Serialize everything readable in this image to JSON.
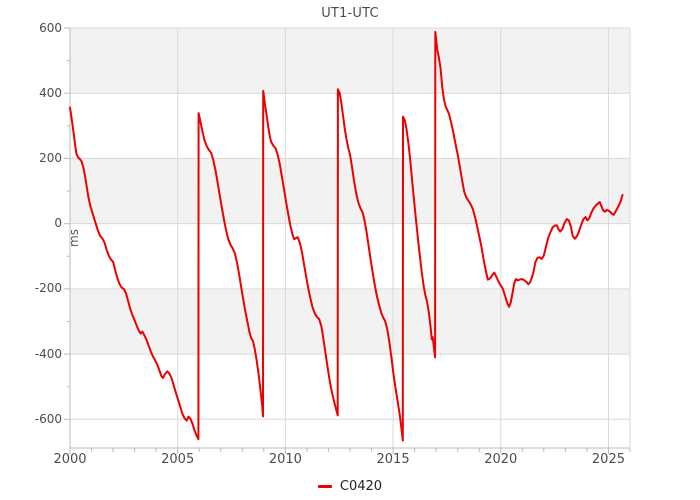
{
  "title": "UT1-UTC",
  "axes": {
    "y_label": "ms",
    "x_ticks": [
      2000,
      2005,
      2010,
      2015,
      2020,
      2025
    ],
    "y_ticks": [
      600,
      400,
      200,
      0,
      -200,
      -400,
      -600
    ],
    "x_minor_step": 1,
    "y_minor_step": 100
  },
  "legend": {
    "items": [
      {
        "label": "C0420",
        "color": "#ee0000"
      }
    ],
    "position": "bottom-center"
  },
  "colors": {
    "background": "#ffffff",
    "band": "#f2f2f2",
    "grid": "#d9d9d9",
    "border": "#d9d9d9",
    "axis": "#bbbbbb",
    "tick_label": "#4d4d4d",
    "title": "#4d4d4d",
    "line": "#ee0000"
  },
  "chart_data": {
    "type": "line",
    "title": "UT1-UTC",
    "xlabel": "",
    "ylabel": "ms",
    "xlim": [
      2000,
      2026
    ],
    "ylim": [
      -688,
      600
    ],
    "grid": true,
    "legend_position": "bottom-center",
    "alternating_bands": [
      [
        600,
        400
      ],
      [
        200,
        0
      ],
      [
        -200,
        -400
      ]
    ],
    "x_tick_labels": [
      "2000",
      "2005",
      "2010",
      "2015",
      "2020",
      "2025"
    ],
    "y_tick_labels": [
      "600",
      "400",
      "200",
      "0",
      "-200",
      "-400",
      "-600"
    ],
    "series": [
      {
        "name": "C0420",
        "color": "#ee0000",
        "x_unit": "decimal_year",
        "y_unit": "ms",
        "points": [
          [
            2000.0,
            356
          ],
          [
            2000.06,
            330
          ],
          [
            2000.12,
            300
          ],
          [
            2000.18,
            272
          ],
          [
            2000.24,
            240
          ],
          [
            2000.3,
            213
          ],
          [
            2000.38,
            203
          ],
          [
            2000.46,
            198
          ],
          [
            2000.54,
            191
          ],
          [
            2000.62,
            172
          ],
          [
            2000.7,
            145
          ],
          [
            2000.78,
            112
          ],
          [
            2000.86,
            80
          ],
          [
            2000.94,
            56
          ],
          [
            2001.02,
            38
          ],
          [
            2001.1,
            20
          ],
          [
            2001.2,
            0
          ],
          [
            2001.3,
            -22
          ],
          [
            2001.4,
            -38
          ],
          [
            2001.5,
            -45
          ],
          [
            2001.6,
            -58
          ],
          [
            2001.7,
            -80
          ],
          [
            2001.8,
            -98
          ],
          [
            2001.9,
            -110
          ],
          [
            2002.0,
            -117
          ],
          [
            2002.1,
            -143
          ],
          [
            2002.2,
            -167
          ],
          [
            2002.3,
            -185
          ],
          [
            2002.4,
            -196
          ],
          [
            2002.5,
            -200
          ],
          [
            2002.6,
            -213
          ],
          [
            2002.7,
            -238
          ],
          [
            2002.8,
            -262
          ],
          [
            2002.9,
            -281
          ],
          [
            2003.0,
            -296
          ],
          [
            2003.1,
            -314
          ],
          [
            2003.2,
            -329
          ],
          [
            2003.28,
            -337
          ],
          [
            2003.36,
            -331
          ],
          [
            2003.45,
            -342
          ],
          [
            2003.55,
            -356
          ],
          [
            2003.65,
            -374
          ],
          [
            2003.75,
            -392
          ],
          [
            2003.85,
            -407
          ],
          [
            2003.95,
            -419
          ],
          [
            2004.05,
            -432
          ],
          [
            2004.15,
            -450
          ],
          [
            2004.25,
            -468
          ],
          [
            2004.32,
            -473
          ],
          [
            2004.42,
            -460
          ],
          [
            2004.52,
            -453
          ],
          [
            2004.62,
            -460
          ],
          [
            2004.72,
            -475
          ],
          [
            2004.82,
            -497
          ],
          [
            2004.92,
            -520
          ],
          [
            2005.02,
            -540
          ],
          [
            2005.12,
            -562
          ],
          [
            2005.22,
            -583
          ],
          [
            2005.32,
            -597
          ],
          [
            2005.42,
            -604
          ],
          [
            2005.5,
            -592
          ],
          [
            2005.58,
            -597
          ],
          [
            2005.68,
            -612
          ],
          [
            2005.78,
            -634
          ],
          [
            2005.88,
            -650
          ],
          [
            2005.96,
            -661
          ],
          [
            2005.97,
            339
          ],
          [
            2006.05,
            315
          ],
          [
            2006.15,
            282
          ],
          [
            2006.25,
            255
          ],
          [
            2006.35,
            237
          ],
          [
            2006.45,
            226
          ],
          [
            2006.55,
            218
          ],
          [
            2006.65,
            196
          ],
          [
            2006.75,
            165
          ],
          [
            2006.85,
            128
          ],
          [
            2006.95,
            88
          ],
          [
            2007.05,
            50
          ],
          [
            2007.15,
            12
          ],
          [
            2007.25,
            -22
          ],
          [
            2007.35,
            -48
          ],
          [
            2007.45,
            -65
          ],
          [
            2007.55,
            -75
          ],
          [
            2007.65,
            -90
          ],
          [
            2007.75,
            -118
          ],
          [
            2007.85,
            -155
          ],
          [
            2007.95,
            -195
          ],
          [
            2008.05,
            -235
          ],
          [
            2008.15,
            -272
          ],
          [
            2008.25,
            -305
          ],
          [
            2008.33,
            -332
          ],
          [
            2008.41,
            -350
          ],
          [
            2008.49,
            -360
          ],
          [
            2008.57,
            -382
          ],
          [
            2008.67,
            -420
          ],
          [
            2008.77,
            -468
          ],
          [
            2008.87,
            -525
          ],
          [
            2008.93,
            -562
          ],
          [
            2008.96,
            -591
          ],
          [
            2008.97,
            407
          ],
          [
            2009.05,
            368
          ],
          [
            2009.15,
            322
          ],
          [
            2009.25,
            278
          ],
          [
            2009.33,
            252
          ],
          [
            2009.43,
            240
          ],
          [
            2009.53,
            232
          ],
          [
            2009.63,
            215
          ],
          [
            2009.73,
            185
          ],
          [
            2009.83,
            148
          ],
          [
            2009.93,
            108
          ],
          [
            2010.03,
            68
          ],
          [
            2010.13,
            30
          ],
          [
            2010.23,
            -5
          ],
          [
            2010.33,
            -33
          ],
          [
            2010.41,
            -48
          ],
          [
            2010.49,
            -44
          ],
          [
            2010.57,
            -42
          ],
          [
            2010.67,
            -58
          ],
          [
            2010.77,
            -88
          ],
          [
            2010.87,
            -126
          ],
          [
            2010.97,
            -165
          ],
          [
            2011.07,
            -200
          ],
          [
            2011.17,
            -232
          ],
          [
            2011.27,
            -258
          ],
          [
            2011.37,
            -276
          ],
          [
            2011.47,
            -286
          ],
          [
            2011.57,
            -293
          ],
          [
            2011.67,
            -315
          ],
          [
            2011.77,
            -355
          ],
          [
            2011.87,
            -402
          ],
          [
            2011.97,
            -445
          ],
          [
            2012.07,
            -487
          ],
          [
            2012.17,
            -520
          ],
          [
            2012.27,
            -548
          ],
          [
            2012.37,
            -573
          ],
          [
            2012.43,
            -588
          ],
          [
            2012.44,
            412
          ],
          [
            2012.52,
            400
          ],
          [
            2012.6,
            368
          ],
          [
            2012.68,
            330
          ],
          [
            2012.76,
            290
          ],
          [
            2012.84,
            257
          ],
          [
            2012.92,
            232
          ],
          [
            2013.0,
            212
          ],
          [
            2013.1,
            170
          ],
          [
            2013.2,
            126
          ],
          [
            2013.3,
            88
          ],
          [
            2013.4,
            62
          ],
          [
            2013.5,
            45
          ],
          [
            2013.58,
            35
          ],
          [
            2013.66,
            15
          ],
          [
            2013.76,
            -22
          ],
          [
            2013.86,
            -66
          ],
          [
            2013.96,
            -112
          ],
          [
            2014.06,
            -152
          ],
          [
            2014.16,
            -192
          ],
          [
            2014.26,
            -225
          ],
          [
            2014.36,
            -252
          ],
          [
            2014.46,
            -275
          ],
          [
            2014.54,
            -288
          ],
          [
            2014.62,
            -297
          ],
          [
            2014.72,
            -320
          ],
          [
            2014.82,
            -360
          ],
          [
            2014.92,
            -410
          ],
          [
            2015.02,
            -462
          ],
          [
            2015.12,
            -508
          ],
          [
            2015.22,
            -548
          ],
          [
            2015.32,
            -592
          ],
          [
            2015.4,
            -635
          ],
          [
            2015.45,
            -665
          ],
          [
            2015.46,
            328
          ],
          [
            2015.54,
            318
          ],
          [
            2015.62,
            292
          ],
          [
            2015.7,
            252
          ],
          [
            2015.78,
            205
          ],
          [
            2015.86,
            150
          ],
          [
            2015.94,
            95
          ],
          [
            2016.02,
            42
          ],
          [
            2016.1,
            -12
          ],
          [
            2016.18,
            -62
          ],
          [
            2016.26,
            -108
          ],
          [
            2016.34,
            -152
          ],
          [
            2016.42,
            -192
          ],
          [
            2016.5,
            -220
          ],
          [
            2016.58,
            -240
          ],
          [
            2016.66,
            -272
          ],
          [
            2016.74,
            -318
          ],
          [
            2016.8,
            -355
          ],
          [
            2016.84,
            -348
          ],
          [
            2016.9,
            -382
          ],
          [
            2016.95,
            -410
          ],
          [
            2016.96,
            588
          ],
          [
            2017.05,
            535
          ],
          [
            2017.12,
            512
          ],
          [
            2017.2,
            478
          ],
          [
            2017.28,
            420
          ],
          [
            2017.36,
            382
          ],
          [
            2017.44,
            360
          ],
          [
            2017.52,
            348
          ],
          [
            2017.6,
            335
          ],
          [
            2017.7,
            310
          ],
          [
            2017.8,
            278
          ],
          [
            2017.9,
            245
          ],
          [
            2018.0,
            212
          ],
          [
            2018.1,
            175
          ],
          [
            2018.2,
            135
          ],
          [
            2018.3,
            98
          ],
          [
            2018.4,
            80
          ],
          [
            2018.5,
            70
          ],
          [
            2018.6,
            60
          ],
          [
            2018.7,
            45
          ],
          [
            2018.8,
            22
          ],
          [
            2018.9,
            -8
          ],
          [
            2019.0,
            -38
          ],
          [
            2019.1,
            -70
          ],
          [
            2019.2,
            -108
          ],
          [
            2019.3,
            -142
          ],
          [
            2019.4,
            -172
          ],
          [
            2019.5,
            -168
          ],
          [
            2019.6,
            -158
          ],
          [
            2019.7,
            -150
          ],
          [
            2019.8,
            -164
          ],
          [
            2019.9,
            -178
          ],
          [
            2020.0,
            -190
          ],
          [
            2020.1,
            -200
          ],
          [
            2020.2,
            -222
          ],
          [
            2020.3,
            -243
          ],
          [
            2020.38,
            -255
          ],
          [
            2020.46,
            -242
          ],
          [
            2020.54,
            -215
          ],
          [
            2020.62,
            -185
          ],
          [
            2020.7,
            -170
          ],
          [
            2020.8,
            -174
          ],
          [
            2020.9,
            -171
          ],
          [
            2021.0,
            -170
          ],
          [
            2021.1,
            -174
          ],
          [
            2021.2,
            -179
          ],
          [
            2021.28,
            -186
          ],
          [
            2021.36,
            -180
          ],
          [
            2021.44,
            -166
          ],
          [
            2021.52,
            -148
          ],
          [
            2021.6,
            -120
          ],
          [
            2021.7,
            -105
          ],
          [
            2021.8,
            -103
          ],
          [
            2021.9,
            -108
          ],
          [
            2022.0,
            -98
          ],
          [
            2022.1,
            -70
          ],
          [
            2022.2,
            -44
          ],
          [
            2022.3,
            -27
          ],
          [
            2022.4,
            -12
          ],
          [
            2022.5,
            -6
          ],
          [
            2022.6,
            -5
          ],
          [
            2022.68,
            -17
          ],
          [
            2022.76,
            -24
          ],
          [
            2022.86,
            -16
          ],
          [
            2022.96,
            2
          ],
          [
            2023.06,
            14
          ],
          [
            2023.16,
            10
          ],
          [
            2023.26,
            -10
          ],
          [
            2023.34,
            -38
          ],
          [
            2023.44,
            -46
          ],
          [
            2023.54,
            -38
          ],
          [
            2023.64,
            -22
          ],
          [
            2023.74,
            -3
          ],
          [
            2023.84,
            14
          ],
          [
            2023.94,
            20
          ],
          [
            2024.02,
            10
          ],
          [
            2024.12,
            18
          ],
          [
            2024.22,
            36
          ],
          [
            2024.32,
            48
          ],
          [
            2024.42,
            56
          ],
          [
            2024.52,
            62
          ],
          [
            2024.6,
            66
          ],
          [
            2024.68,
            52
          ],
          [
            2024.76,
            40
          ],
          [
            2024.84,
            37
          ],
          [
            2024.92,
            42
          ],
          [
            2025.0,
            40
          ],
          [
            2025.08,
            36
          ],
          [
            2025.16,
            30
          ],
          [
            2025.24,
            27
          ],
          [
            2025.32,
            36
          ],
          [
            2025.4,
            46
          ],
          [
            2025.5,
            58
          ],
          [
            2025.58,
            72
          ],
          [
            2025.65,
            88
          ]
        ]
      }
    ]
  }
}
